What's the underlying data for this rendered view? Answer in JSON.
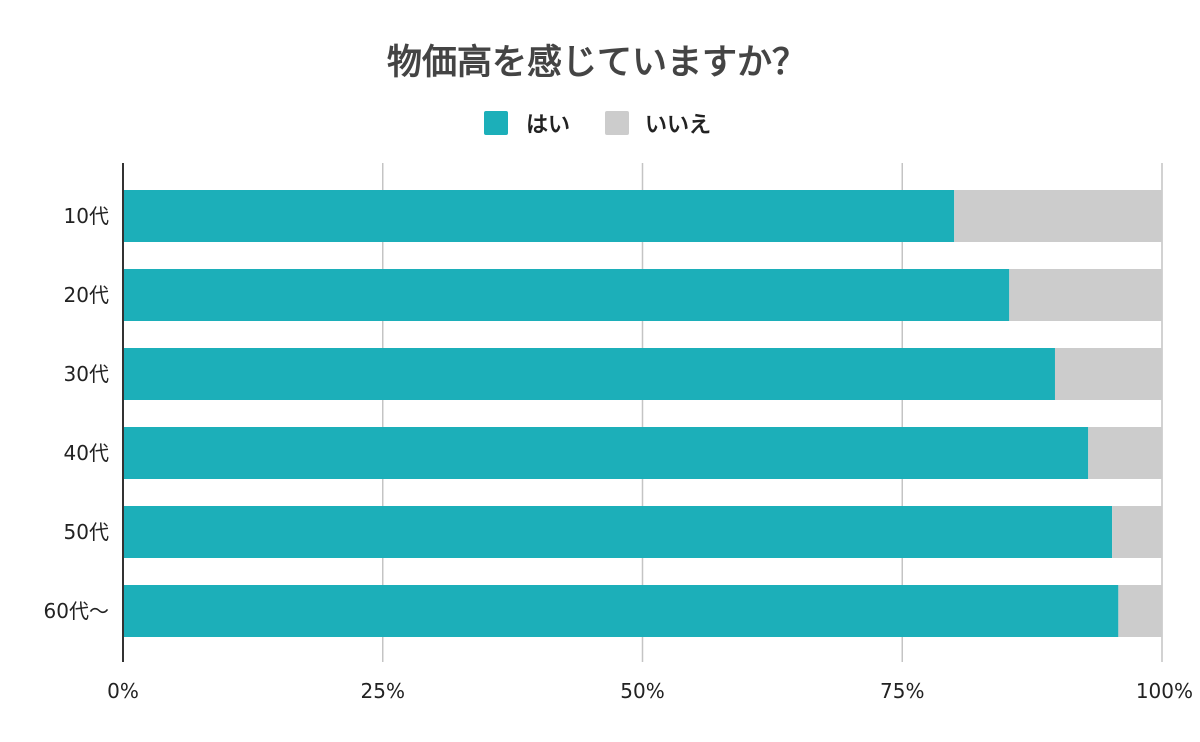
{
  "chart_data": {
    "type": "bar",
    "orientation": "horizontal",
    "stacked": true,
    "title": "物価高を感じていますか？",
    "categories": [
      "10代",
      "20代",
      "30代",
      "40代",
      "50代",
      "60代〜"
    ],
    "series": [
      {
        "name": "はい",
        "color": "#1cafb9",
        "values": [
          80,
          85.3,
          89.7,
          92.9,
          95.2,
          95.8
        ]
      },
      {
        "name": "いいえ",
        "color": "#cccccc",
        "values": [
          20,
          14.7,
          10.3,
          7.1,
          4.8,
          4.2
        ]
      }
    ],
    "xlim": [
      0,
      100
    ],
    "xticks": [
      0,
      25,
      50,
      75,
      100
    ],
    "xtick_labels": [
      "0%",
      "25%",
      "50%",
      "75%",
      "100%"
    ],
    "grid": "vertical",
    "legend_position": "top"
  }
}
